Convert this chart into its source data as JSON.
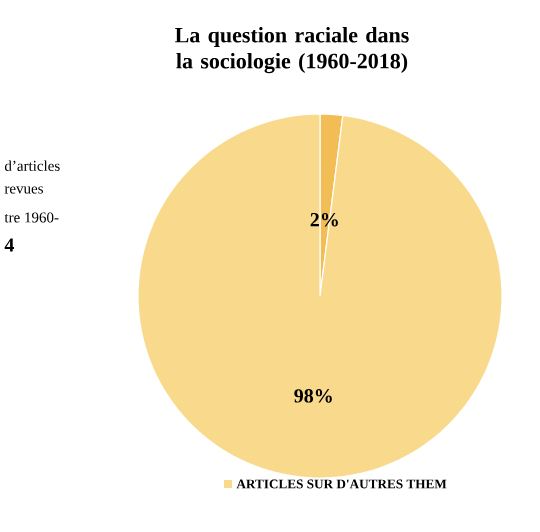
{
  "chart_data": {
    "type": "pie",
    "title": "La question raciale dans la sociologie (1960-2018)",
    "annotations": [
      "d’articles",
      "revues",
      "tre 1960-",
      "4"
    ],
    "categories": [
      null,
      "ARTICLES SUR D'AUTRES THEM"
    ],
    "values": [
      2,
      98
    ],
    "value_labels": [
      "2%",
      "98%"
    ],
    "colors": [
      "#f2bd55",
      "#f9d98c"
    ],
    "legend": "bottom"
  }
}
